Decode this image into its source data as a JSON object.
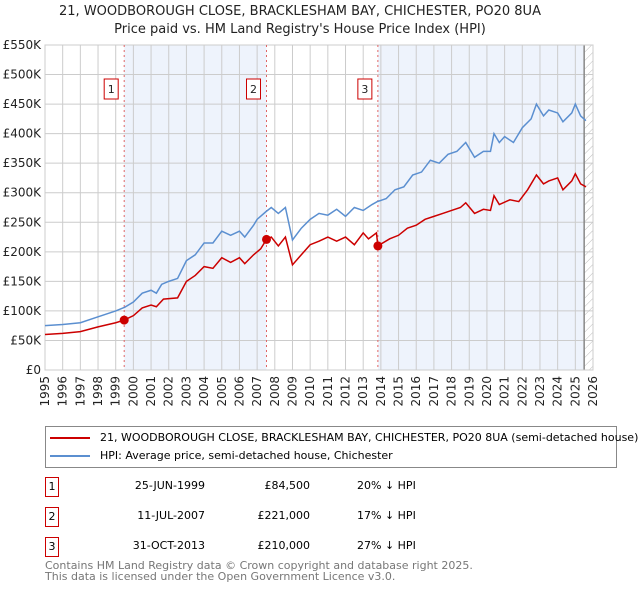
{
  "title_line1": "21, WOODBOROUGH CLOSE, BRACKLESHAM BAY, CHICHESTER, PO20 8UA",
  "title_line2": "Price paid vs. HM Land Registry's House Price Index (HPI)",
  "chart_data": {
    "type": "line",
    "ylim": [
      0,
      550000
    ],
    "xlim": [
      1995,
      2026
    ],
    "y_ticks": [
      "£0",
      "£50K",
      "£100K",
      "£150K",
      "£200K",
      "£250K",
      "£300K",
      "£350K",
      "£400K",
      "£450K",
      "£500K",
      "£550K"
    ],
    "x_ticks": [
      "1995",
      "1996",
      "1997",
      "1998",
      "1999",
      "2000",
      "2001",
      "2002",
      "2003",
      "2004",
      "2005",
      "2006",
      "2007",
      "2008",
      "2009",
      "2010",
      "2011",
      "2012",
      "2013",
      "2014",
      "2015",
      "2016",
      "2017",
      "2018",
      "2019",
      "2020",
      "2021",
      "2022",
      "2023",
      "2024",
      "2025",
      "2026"
    ],
    "colors": {
      "property": "#cc0000",
      "hpi": "#5b8fd0",
      "shade": "#eef3fc"
    },
    "series": [
      {
        "name": "21, WOODBOROUGH CLOSE, BRACKLESHAM BAY, CHICHESTER, PO20 8UA (semi-detached house)",
        "color": "#cc0000",
        "x": [
          1995,
          1996,
          1997,
          1998,
          1999,
          1999.48,
          2000,
          2000.5,
          2001,
          2001.3,
          2001.7,
          2002.5,
          2003,
          2003.5,
          2004,
          2004.5,
          2005,
          2005.5,
          2006,
          2006.3,
          2006.8,
          2007.2,
          2007.53,
          2007.8,
          2008.2,
          2008.6,
          2009,
          2009.5,
          2010,
          2010.5,
          2011,
          2011.5,
          2012,
          2012.5,
          2013,
          2013.3,
          2013.75,
          2013.83,
          2014.5,
          2015,
          2015.5,
          2016,
          2016.5,
          2017,
          2017.5,
          2018,
          2018.5,
          2018.8,
          2019.3,
          2019.8,
          2020.2,
          2020.4,
          2020.7,
          2021.3,
          2021.8,
          2022.3,
          2022.8,
          2023.2,
          2023.5,
          2024,
          2024.3,
          2024.8,
          2025,
          2025.3,
          2025.6
        ],
        "y": [
          60000,
          62000,
          65000,
          73000,
          80000,
          84500,
          92000,
          105000,
          110000,
          107000,
          120000,
          122000,
          150000,
          160000,
          175000,
          172000,
          190000,
          182000,
          190000,
          180000,
          195000,
          205000,
          221000,
          225000,
          210000,
          225000,
          178000,
          195000,
          212000,
          218000,
          225000,
          218000,
          225000,
          212000,
          232000,
          222000,
          232000,
          210000,
          222000,
          228000,
          240000,
          245000,
          255000,
          260000,
          265000,
          270000,
          275000,
          283000,
          265000,
          272000,
          270000,
          295000,
          280000,
          288000,
          285000,
          305000,
          330000,
          315000,
          320000,
          325000,
          305000,
          320000,
          332000,
          315000,
          310000
        ]
      },
      {
        "name": "HPI: Average price, semi-detached house, Chichester",
        "color": "#5b8fd0",
        "x": [
          1995,
          1996,
          1997,
          1998,
          1999,
          1999.5,
          2000,
          2000.5,
          2001,
          2001.3,
          2001.6,
          2002,
          2002.5,
          2003,
          2003.5,
          2004,
          2004.5,
          2005,
          2005.5,
          2006,
          2006.3,
          2006.8,
          2007,
          2007.5,
          2007.8,
          2008.2,
          2008.6,
          2009,
          2009.5,
          2010,
          2010.5,
          2011,
          2011.5,
          2012,
          2012.5,
          2013,
          2013.5,
          2013.8,
          2014.3,
          2014.8,
          2015.3,
          2015.8,
          2016.3,
          2016.8,
          2017.3,
          2017.8,
          2018.3,
          2018.8,
          2019.3,
          2019.8,
          2020.2,
          2020.4,
          2020.7,
          2021,
          2021.5,
          2022,
          2022.5,
          2022.8,
          2023.2,
          2023.5,
          2024,
          2024.3,
          2024.8,
          2025,
          2025.3,
          2025.6
        ],
        "y": [
          75000,
          77000,
          80000,
          90000,
          100000,
          106000,
          115000,
          130000,
          135000,
          130000,
          145000,
          150000,
          155000,
          185000,
          195000,
          215000,
          215000,
          235000,
          228000,
          235000,
          225000,
          245000,
          255000,
          268000,
          275000,
          265000,
          275000,
          220000,
          240000,
          255000,
          265000,
          262000,
          272000,
          260000,
          275000,
          270000,
          280000,
          285000,
          290000,
          305000,
          310000,
          330000,
          335000,
          355000,
          350000,
          365000,
          370000,
          385000,
          360000,
          370000,
          370000,
          400000,
          385000,
          395000,
          385000,
          410000,
          425000,
          450000,
          430000,
          440000,
          435000,
          420000,
          435000,
          450000,
          430000,
          422000
        ]
      }
    ],
    "sales": [
      {
        "label": "1",
        "x": 1999.48,
        "y": 84500,
        "date": "25-JUN-1999",
        "price": "£84,500",
        "hpi": "20% ↓ HPI"
      },
      {
        "label": "2",
        "x": 2007.53,
        "y": 221000,
        "date": "11-JUL-2007",
        "price": "£221,000",
        "hpi": "17% ↓ HPI"
      },
      {
        "label": "3",
        "x": 2013.83,
        "y": 210000,
        "date": "31-OCT-2013",
        "price": "£210,000",
        "hpi": "27% ↓ HPI"
      }
    ],
    "hatch_from": 2025.5
  },
  "legend": {
    "property": "21, WOODBOROUGH CLOSE, BRACKLESHAM BAY, CHICHESTER, PO20 8UA (semi-detached house)",
    "hpi": "HPI: Average price, semi-detached house, Chichester"
  },
  "footer": {
    "line1": "Contains HM Land Registry data © Crown copyright and database right 2025.",
    "line2": "This data is licensed under the Open Government Licence v3.0."
  }
}
